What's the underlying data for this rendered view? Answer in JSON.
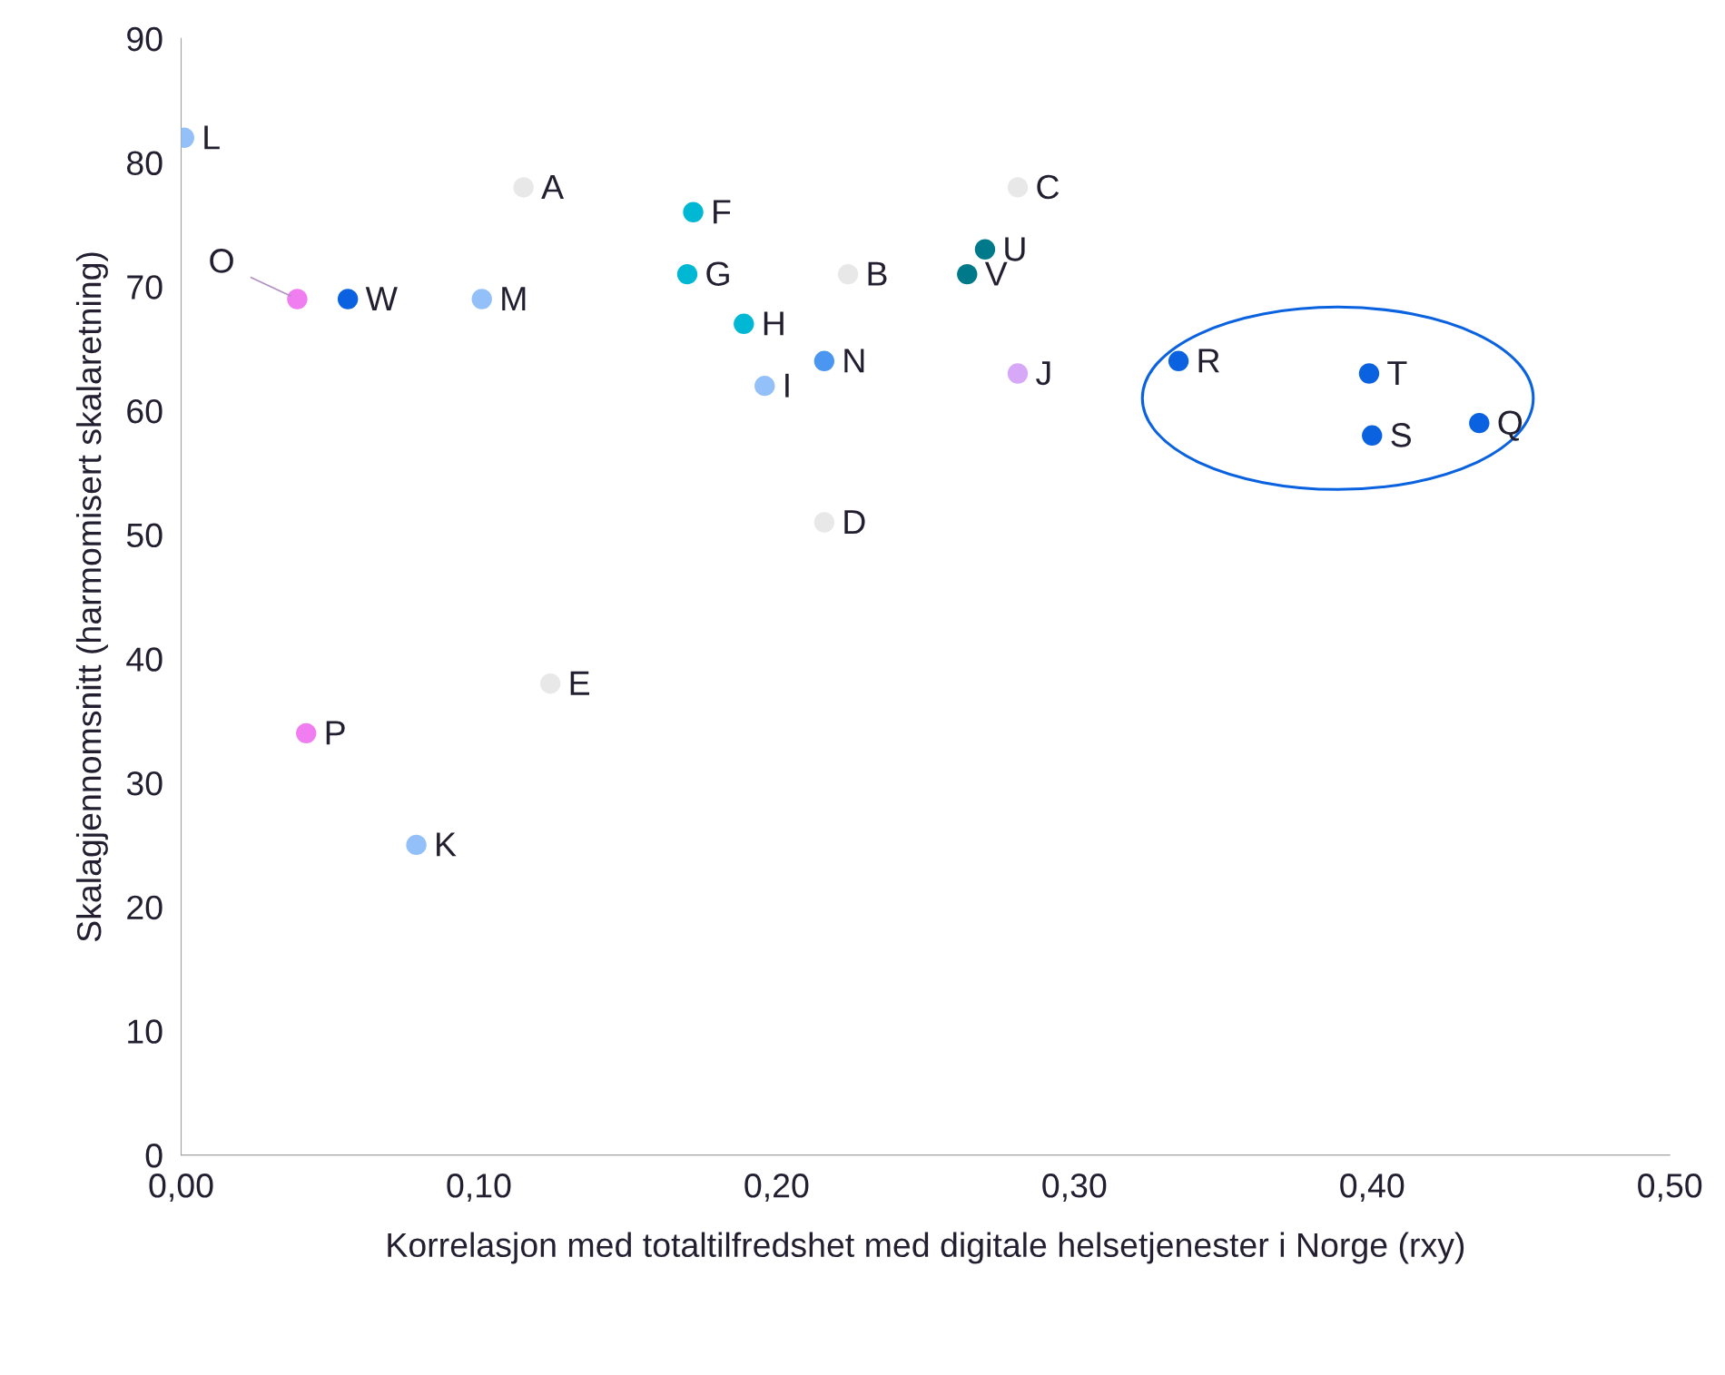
{
  "chart_data": {
    "type": "scatter",
    "xlabel": "Korrelasjon med totaltilfredshet med digitale helsetjenester i Norge (rxy)",
    "ylabel": "Skalagjennomsnitt (harmomisert skalaretning)",
    "xlim": [
      0,
      0.5
    ],
    "ylim": [
      0,
      90
    ],
    "xticks": [
      {
        "value": 0,
        "label": "0,00"
      },
      {
        "value": 0.1,
        "label": "0,10"
      },
      {
        "value": 0.2,
        "label": "0,20"
      },
      {
        "value": 0.3,
        "label": "0,30"
      },
      {
        "value": 0.4,
        "label": "0,40"
      },
      {
        "value": 0.5,
        "label": "0,50"
      }
    ],
    "yticks": [
      0,
      10,
      20,
      30,
      40,
      50,
      60,
      70,
      80,
      90
    ],
    "grid": false,
    "legend": false,
    "marker": "circle",
    "series": [
      {
        "name": "A",
        "color": "#e8e8e8",
        "x": [
          0.115
        ],
        "values": [
          78
        ]
      },
      {
        "name": "B",
        "color": "#e8e8e8",
        "x": [
          0.224
        ],
        "values": [
          71
        ]
      },
      {
        "name": "C",
        "color": "#e8e8e8",
        "x": [
          0.281
        ],
        "values": [
          78
        ]
      },
      {
        "name": "D",
        "color": "#e8e8e8",
        "x": [
          0.216
        ],
        "values": [
          51
        ]
      },
      {
        "name": "E",
        "color": "#e8e8e8",
        "x": [
          0.124
        ],
        "values": [
          38
        ]
      },
      {
        "name": "F",
        "color": "#00b8d4",
        "x": [
          0.172
        ],
        "values": [
          76
        ]
      },
      {
        "name": "G",
        "color": "#00b8d4",
        "x": [
          0.17
        ],
        "values": [
          71
        ]
      },
      {
        "name": "H",
        "color": "#00b8d4",
        "x": [
          0.189
        ],
        "values": [
          67
        ]
      },
      {
        "name": "I",
        "color": "#93c0f8",
        "x": [
          0.196
        ],
        "values": [
          62
        ]
      },
      {
        "name": "J",
        "color": "#d8a8f8",
        "x": [
          0.281
        ],
        "values": [
          63
        ]
      },
      {
        "name": "K",
        "color": "#93c0f8",
        "x": [
          0.079
        ],
        "values": [
          25
        ]
      },
      {
        "name": "L",
        "color": "#93c0f8",
        "x": [
          0.001
        ],
        "values": [
          82
        ]
      },
      {
        "name": "M",
        "color": "#93c0f8",
        "x": [
          0.101
        ],
        "values": [
          69
        ]
      },
      {
        "name": "N",
        "color": "#4a96f0",
        "x": [
          0.216
        ],
        "values": [
          64
        ]
      },
      {
        "name": "O",
        "color": "#f07ef0",
        "x": [
          0.039
        ],
        "values": [
          69
        ]
      },
      {
        "name": "P",
        "color": "#f07ef0",
        "x": [
          0.042
        ],
        "values": [
          34
        ]
      },
      {
        "name": "U",
        "color": "#007a8a",
        "x": [
          0.27
        ],
        "values": [
          73
        ]
      },
      {
        "name": "V",
        "color": "#007a8a",
        "x": [
          0.264
        ],
        "values": [
          71
        ]
      },
      {
        "name": "W",
        "color": "#0a62e0",
        "x": [
          0.056
        ],
        "values": [
          69
        ]
      },
      {
        "name": "Q",
        "color": "#0a62e0",
        "x": [
          0.436
        ],
        "values": [
          59
        ]
      },
      {
        "name": "R",
        "color": "#0a62e0",
        "x": [
          0.335
        ],
        "values": [
          64
        ]
      },
      {
        "name": "S",
        "color": "#0a62e0",
        "x": [
          0.4
        ],
        "values": [
          58
        ]
      },
      {
        "name": "T",
        "color": "#0a62e0",
        "x": [
          0.399
        ],
        "values": [
          63
        ]
      }
    ]
  }
}
